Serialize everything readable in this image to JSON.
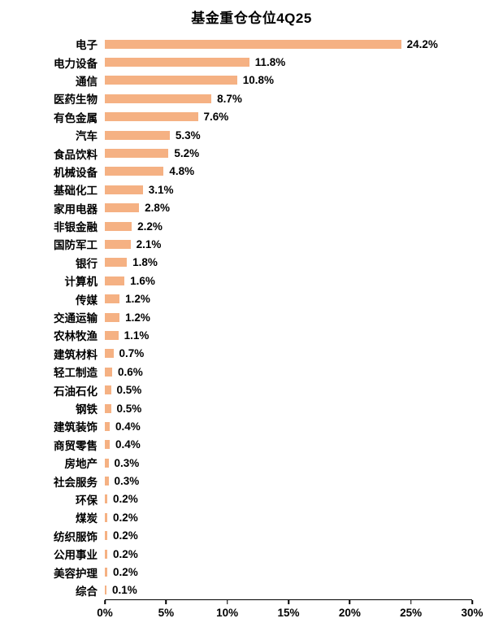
{
  "chart_data": {
    "type": "bar",
    "orientation": "horizontal",
    "title": "基金重仓仓位4Q25",
    "categories": [
      "电子",
      "电力设备",
      "通信",
      "医药生物",
      "有色金属",
      "汽车",
      "食品饮料",
      "机械设备",
      "基础化工",
      "家用电器",
      "非银金融",
      "国防军工",
      "银行",
      "计算机",
      "传媒",
      "交通运输",
      "农林牧渔",
      "建筑材料",
      "轻工制造",
      "石油石化",
      "钢铁",
      "建筑装饰",
      "商贸零售",
      "房地产",
      "社会服务",
      "环保",
      "煤炭",
      "纺织服饰",
      "公用事业",
      "美容护理",
      "综合"
    ],
    "values": [
      24.2,
      11.8,
      10.8,
      8.7,
      7.6,
      5.3,
      5.2,
      4.8,
      3.1,
      2.8,
      2.2,
      2.1,
      1.8,
      1.6,
      1.2,
      1.2,
      1.1,
      0.7,
      0.6,
      0.5,
      0.5,
      0.4,
      0.4,
      0.3,
      0.3,
      0.2,
      0.2,
      0.2,
      0.2,
      0.2,
      0.1
    ],
    "value_labels": [
      "24.2%",
      "11.8%",
      "10.8%",
      "8.7%",
      "7.6%",
      "5.3%",
      "5.2%",
      "4.8%",
      "3.1%",
      "2.8%",
      "2.2%",
      "2.1%",
      "1.8%",
      "1.6%",
      "1.2%",
      "1.2%",
      "1.1%",
      "0.7%",
      "0.6%",
      "0.5%",
      "0.5%",
      "0.4%",
      "0.4%",
      "0.3%",
      "0.3%",
      "0.2%",
      "0.2%",
      "0.2%",
      "0.2%",
      "0.2%",
      "0.1%"
    ],
    "xlabel": "",
    "ylabel": "",
    "xlim": [
      0,
      30
    ],
    "x_ticks": [
      "0%",
      "5%",
      "10%",
      "15%",
      "20%",
      "25%",
      "30%"
    ],
    "x_tick_values": [
      0,
      5,
      10,
      15,
      20,
      25,
      30
    ],
    "bar_color": "#F5B183",
    "axis_color": "#000000",
    "grid": false,
    "legend": false
  }
}
